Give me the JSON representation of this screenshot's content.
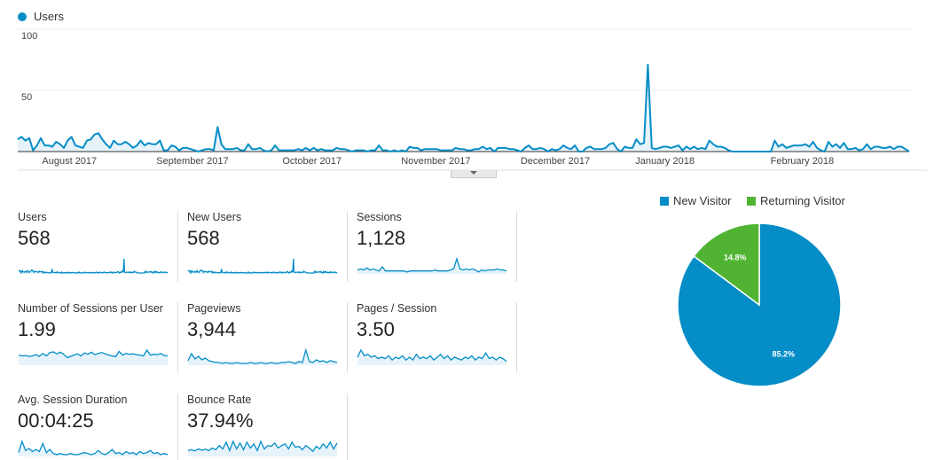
{
  "chart_data": [
    {
      "type": "line",
      "series": [
        {
          "name": "Users",
          "color": "#058dc7",
          "values": [
            10,
            12,
            9,
            11,
            1,
            5,
            11,
            5,
            5,
            4,
            8,
            6,
            3,
            9,
            12,
            5,
            4,
            3,
            9,
            10,
            14,
            15,
            10,
            6,
            3,
            9,
            6,
            6,
            8,
            6,
            3,
            5,
            9,
            5,
            7,
            6,
            6,
            9,
            1,
            1,
            5,
            4,
            1,
            3,
            3,
            2,
            1,
            0,
            1,
            2,
            2,
            1,
            20,
            6,
            2,
            2,
            2,
            3,
            1,
            1,
            6,
            2,
            2,
            3,
            1,
            0,
            1,
            5,
            1,
            1,
            1,
            1,
            1,
            2,
            1,
            3,
            1,
            3,
            1,
            2,
            1,
            1,
            1,
            3,
            2,
            2,
            1,
            0,
            1,
            1,
            1,
            0,
            1,
            1,
            5,
            1,
            1,
            0,
            1,
            0,
            1,
            0,
            4,
            3,
            3,
            1,
            2,
            2,
            2,
            2,
            1,
            1,
            1,
            1,
            3,
            2,
            2,
            1,
            1,
            2,
            2,
            4,
            2,
            3,
            0,
            3,
            3,
            3,
            2,
            2,
            1,
            0,
            3,
            5,
            2,
            2,
            3,
            2,
            0,
            2,
            1,
            2,
            5,
            3,
            2,
            5,
            0,
            0,
            3,
            4,
            2,
            2,
            2,
            3,
            6,
            7,
            2,
            0,
            4,
            3,
            3,
            10,
            6,
            7,
            71,
            3,
            2,
            3,
            4,
            4,
            3,
            4,
            5,
            1,
            4,
            2,
            4,
            2,
            3,
            2,
            9,
            6,
            4,
            4,
            3,
            1,
            0,
            0,
            0,
            0,
            0,
            0,
            0,
            0,
            0,
            0,
            0,
            9,
            4,
            6,
            3,
            4,
            5,
            5,
            5,
            6,
            4,
            8,
            3,
            1,
            0,
            8,
            4,
            6,
            3,
            7,
            2,
            2,
            3,
            1,
            2,
            6,
            2,
            4,
            4,
            3,
            3,
            4,
            2,
            4,
            4,
            2,
            0
          ]
        }
      ],
      "x_tick_labels": [
        "August 2017",
        "September 2017",
        "October 2017",
        "November 2017",
        "December 2017",
        "January 2018",
        "February 2018"
      ],
      "y_tick_labels": [
        "100",
        "50"
      ],
      "ylim": [
        0,
        100
      ],
      "grid": true,
      "legend": "top-left"
    },
    {
      "type": "pie",
      "slices": [
        {
          "name": "New Visitor",
          "value": 85.2,
          "label": "85.2%",
          "color": "#058dc7"
        },
        {
          "name": "Returning Visitor",
          "value": 14.8,
          "label": "14.8%",
          "color": "#50b432"
        }
      ],
      "legend": "top"
    }
  ],
  "metrics": [
    {
      "label": "Users",
      "value": "568",
      "spark": "users"
    },
    {
      "label": "New Users",
      "value": "568",
      "spark": "users"
    },
    {
      "label": "Sessions",
      "value": "1,128",
      "spark": [
        3,
        4,
        3,
        5,
        3,
        4,
        3,
        2,
        6,
        2,
        2,
        2,
        2,
        2,
        2,
        2,
        1,
        2,
        2,
        2,
        2,
        2,
        2,
        2,
        2,
        3,
        2,
        2,
        2,
        2,
        3,
        4,
        14,
        4,
        3,
        4,
        3,
        4,
        3,
        1,
        3,
        2,
        3,
        3,
        3,
        4,
        3,
        3,
        2
      ]
    },
    {
      "label": "Number of Sessions per User",
      "value": "1.99",
      "spark": [
        2.2,
        2.0,
        2.1,
        1.9,
        2.0,
        2.3,
        1.9,
        2.6,
        2.0,
        2.8,
        3.0,
        2.5,
        2.9,
        2.4,
        1.6,
        1.9,
        2.2,
        2.5,
        2.0,
        2.7,
        2.4,
        2.9,
        2.3,
        2.6,
        2.8,
        2.5,
        2.2,
        2.0,
        1.8,
        3.1,
        2.2,
        2.6,
        2.4,
        2.5,
        2.3,
        2.2,
        2.0,
        3.4,
        2.2,
        2.4,
        2.3,
        2.6,
        2.1,
        2.0
      ]
    },
    {
      "label": "Pageviews",
      "value": "3,944",
      "spark": [
        4,
        12,
        6,
        9,
        5,
        7,
        4,
        3,
        2,
        2,
        1,
        2,
        1,
        1,
        2,
        1,
        1,
        1,
        2,
        1,
        1,
        2,
        1,
        1,
        2,
        1,
        1,
        2,
        2,
        3,
        2,
        1,
        3,
        2,
        16,
        3,
        2,
        5,
        3,
        4,
        2,
        4,
        3,
        2
      ]
    },
    {
      "label": "Pages / Session",
      "value": "3.50",
      "spark": [
        5,
        10,
        6,
        7,
        5,
        6,
        4,
        5,
        4,
        6,
        3,
        5,
        4,
        6,
        3,
        5,
        3,
        7,
        4,
        5,
        4,
        6,
        3,
        5,
        7,
        4,
        6,
        3,
        5,
        4,
        3,
        5,
        4,
        6,
        3,
        5,
        4,
        8,
        4,
        5,
        3,
        5,
        4,
        2
      ]
    },
    {
      "label": "Avg. Session Duration",
      "value": "00:04:25",
      "spark": [
        3,
        14,
        5,
        7,
        4,
        6,
        4,
        12,
        3,
        6,
        2,
        1,
        2,
        1,
        1,
        2,
        1,
        1,
        2,
        3,
        2,
        1,
        2,
        5,
        2,
        1,
        3,
        6,
        2,
        3,
        1,
        4,
        2,
        3,
        1,
        4,
        2,
        3,
        5,
        2,
        3,
        1,
        2,
        1
      ]
    },
    {
      "label": "Bounce Rate",
      "value": "37.94%",
      "spark": [
        30,
        35,
        28,
        40,
        32,
        38,
        30,
        45,
        35,
        60,
        40,
        80,
        30,
        85,
        40,
        75,
        35,
        80,
        45,
        70,
        30,
        85,
        40,
        60,
        55,
        75,
        45,
        60,
        70,
        40,
        80,
        50,
        55,
        35,
        60,
        45,
        25,
        55,
        40,
        70,
        45,
        80,
        40,
        75
      ]
    }
  ]
}
